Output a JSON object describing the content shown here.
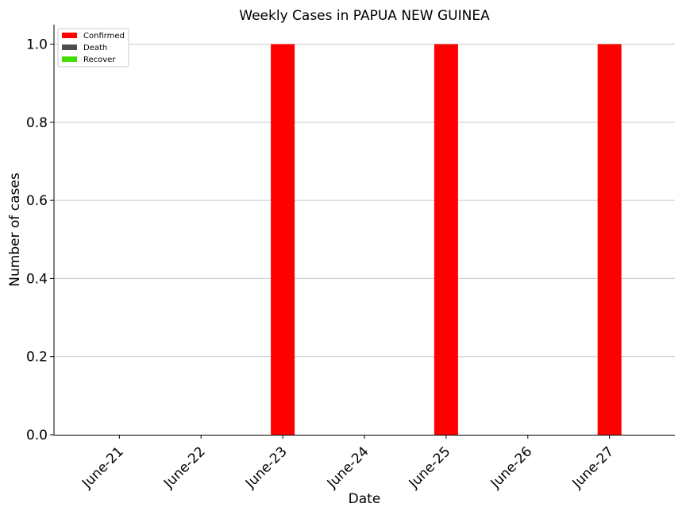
{
  "chart_data": {
    "type": "bar",
    "title": "Weekly Cases in PAPUA NEW GUINEA",
    "xlabel": "Date",
    "ylabel": "Number of cases",
    "categories": [
      "June-21",
      "June-22",
      "June-23",
      "June-24",
      "June-25",
      "June-26",
      "June-27"
    ],
    "series": [
      {
        "name": "Confirmed",
        "color": "#ff0000",
        "values": [
          0,
          0,
          1,
          0,
          1,
          0,
          1
        ]
      },
      {
        "name": "Death",
        "color": "#4d4d4d",
        "values": [
          0,
          0,
          0,
          0,
          0,
          0,
          0
        ]
      },
      {
        "name": "Recover",
        "color": "#44dd00",
        "values": [
          0,
          0,
          0,
          0,
          0,
          0,
          0
        ]
      }
    ],
    "ylim": [
      0,
      1.05
    ],
    "yticks": [
      "0.0",
      "0.2",
      "0.4",
      "0.6",
      "0.8",
      "1.0"
    ],
    "grid": "horizontal",
    "legend_position": "top-left"
  }
}
